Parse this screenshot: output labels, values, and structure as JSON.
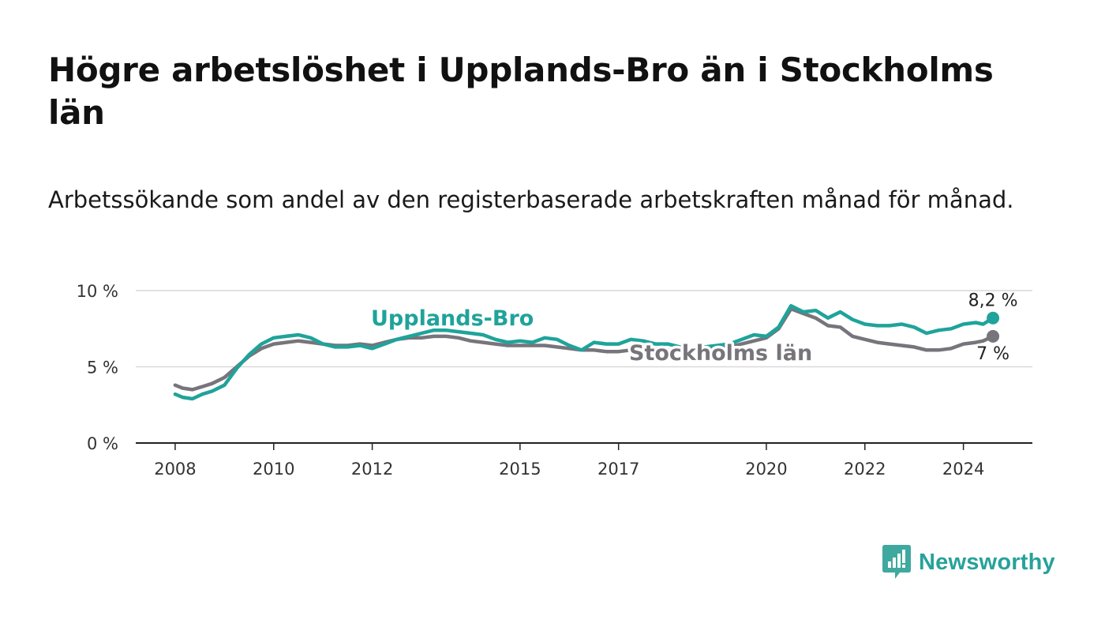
{
  "title": "Högre arbetslöshet i Upplands-Bro än i Stockholms län",
  "subtitle": "Arbetssökande som andel av den registerbaserade arbetskraften månad för månad.",
  "brand": {
    "name": "Newsworthy",
    "color": "#26a29a"
  },
  "chart_data": {
    "type": "line",
    "title": "Högre arbetslöshet i Upplands-Bro än i Stockholms län",
    "xlabel": "",
    "ylabel": "",
    "ylim": [
      0,
      10
    ],
    "xlim": [
      2007.2,
      2025.4
    ],
    "yticks": [
      0,
      5,
      10
    ],
    "ytick_labels": [
      "0 %",
      "5 %",
      "10 %"
    ],
    "xticks": [
      2008,
      2010,
      2012,
      2015,
      2017,
      2020,
      2022,
      2024
    ],
    "xtick_labels": [
      "2008",
      "2010",
      "2012",
      "2015",
      "2017",
      "2020",
      "2022",
      "2024"
    ],
    "grid": true,
    "series": [
      {
        "name": "Upplands-Bro",
        "label": "Upplands-Bro",
        "color": "#1fa39a",
        "end_label": "8,2 %",
        "x": [
          2008.0,
          2008.15,
          2008.35,
          2008.55,
          2008.75,
          2009.0,
          2009.25,
          2009.5,
          2009.75,
          2010.0,
          2010.25,
          2010.5,
          2010.75,
          2011.0,
          2011.25,
          2011.5,
          2011.75,
          2012.0,
          2012.25,
          2012.5,
          2012.75,
          2013.0,
          2013.25,
          2013.5,
          2013.75,
          2014.0,
          2014.25,
          2014.5,
          2014.75,
          2015.0,
          2015.25,
          2015.5,
          2015.75,
          2016.0,
          2016.25,
          2016.5,
          2016.75,
          2017.0,
          2017.25,
          2017.5,
          2017.75,
          2018.0,
          2018.25,
          2018.5,
          2018.75,
          2019.0,
          2019.25,
          2019.5,
          2019.75,
          2020.0,
          2020.25,
          2020.5,
          2020.75,
          2021.0,
          2021.25,
          2021.5,
          2021.75,
          2022.0,
          2022.25,
          2022.5,
          2022.75,
          2023.0,
          2023.25,
          2023.5,
          2023.75,
          2024.0,
          2024.25,
          2024.4,
          2024.6
        ],
        "values": [
          3.2,
          3.0,
          2.9,
          3.2,
          3.4,
          3.8,
          4.9,
          5.8,
          6.5,
          6.9,
          7.0,
          7.1,
          6.9,
          6.5,
          6.3,
          6.3,
          6.4,
          6.2,
          6.5,
          6.8,
          7.0,
          7.2,
          7.4,
          7.4,
          7.3,
          7.2,
          7.1,
          6.8,
          6.6,
          6.7,
          6.6,
          6.9,
          6.8,
          6.4,
          6.1,
          6.6,
          6.5,
          6.5,
          6.8,
          6.7,
          6.5,
          6.5,
          6.3,
          6.2,
          6.3,
          6.4,
          6.5,
          6.8,
          7.1,
          7.0,
          7.6,
          9.0,
          8.6,
          8.7,
          8.2,
          8.6,
          8.1,
          7.8,
          7.7,
          7.7,
          7.8,
          7.6,
          7.2,
          7.4,
          7.5,
          7.8,
          7.9,
          7.8,
          8.2
        ]
      },
      {
        "name": "Stockholms län",
        "label": "Stockholms län",
        "color": "#77747b",
        "end_label": "7 %",
        "x": [
          2008.0,
          2008.15,
          2008.35,
          2008.55,
          2008.75,
          2009.0,
          2009.25,
          2009.5,
          2009.75,
          2010.0,
          2010.25,
          2010.5,
          2010.75,
          2011.0,
          2011.25,
          2011.5,
          2011.75,
          2012.0,
          2012.25,
          2012.5,
          2012.75,
          2013.0,
          2013.25,
          2013.5,
          2013.75,
          2014.0,
          2014.25,
          2014.5,
          2014.75,
          2015.0,
          2015.25,
          2015.5,
          2015.75,
          2016.0,
          2016.25,
          2016.5,
          2016.75,
          2017.0,
          2017.25,
          2017.5,
          2017.75,
          2018.0,
          2018.25,
          2018.5,
          2018.75,
          2019.0,
          2019.25,
          2019.5,
          2019.75,
          2020.0,
          2020.25,
          2020.5,
          2020.75,
          2021.0,
          2021.25,
          2021.5,
          2021.75,
          2022.0,
          2022.25,
          2022.5,
          2022.75,
          2023.0,
          2023.25,
          2023.5,
          2023.75,
          2024.0,
          2024.25,
          2024.4,
          2024.6
        ],
        "values": [
          3.8,
          3.6,
          3.5,
          3.7,
          3.9,
          4.3,
          5.0,
          5.7,
          6.2,
          6.5,
          6.6,
          6.7,
          6.6,
          6.5,
          6.4,
          6.4,
          6.5,
          6.4,
          6.6,
          6.8,
          6.9,
          6.9,
          7.0,
          7.0,
          6.9,
          6.7,
          6.6,
          6.5,
          6.4,
          6.4,
          6.4,
          6.4,
          6.3,
          6.2,
          6.1,
          6.1,
          6.0,
          6.0,
          6.1,
          6.2,
          6.2,
          6.1,
          6.0,
          6.0,
          6.1,
          6.2,
          6.3,
          6.5,
          6.7,
          6.9,
          7.5,
          8.8,
          8.5,
          8.2,
          7.7,
          7.6,
          7.0,
          6.8,
          6.6,
          6.5,
          6.4,
          6.3,
          6.1,
          6.1,
          6.2,
          6.5,
          6.6,
          6.7,
          7.0
        ]
      }
    ]
  }
}
